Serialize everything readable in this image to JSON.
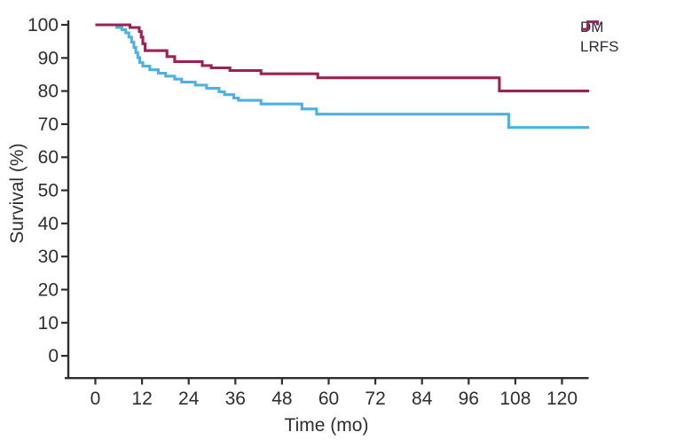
{
  "figure": {
    "background": "#ffffff",
    "axis_color": "#2e2e2e",
    "text_color": "#2e2e2e"
  },
  "chart_data": {
    "type": "line",
    "subtype": "kaplan-meier-step",
    "title": "",
    "xlabel": "Time (mo)",
    "ylabel": "Survival (%)",
    "xlim": [
      0,
      127
    ],
    "ylim": [
      0,
      100
    ],
    "x_ticks": [
      0,
      12,
      24,
      36,
      48,
      60,
      72,
      84,
      96,
      108,
      120
    ],
    "y_ticks": [
      0,
      10,
      20,
      30,
      40,
      50,
      60,
      70,
      80,
      90,
      100
    ],
    "grid": false,
    "legend_position": "top-right",
    "x_end": 127,
    "series": [
      {
        "name": "DM",
        "color": "#4fb0e2",
        "points": [
          [
            0,
            100
          ],
          [
            5.5,
            99.2
          ],
          [
            6.8,
            98.5
          ],
          [
            7.8,
            97.6
          ],
          [
            8.6,
            96.3
          ],
          [
            9.3,
            94.8
          ],
          [
            9.9,
            93.2
          ],
          [
            10.4,
            91.6
          ],
          [
            10.9,
            90.1
          ],
          [
            11.4,
            88.6
          ],
          [
            12.2,
            87.5
          ],
          [
            14,
            86.4
          ],
          [
            16.2,
            85.4
          ],
          [
            18.1,
            84.5
          ],
          [
            20.4,
            83.6
          ],
          [
            22.2,
            82.7
          ],
          [
            25.7,
            81.8
          ],
          [
            28.6,
            80.8
          ],
          [
            31.8,
            79.8
          ],
          [
            33.2,
            78.9
          ],
          [
            35.6,
            77.9
          ],
          [
            36.8,
            77.2
          ],
          [
            42.6,
            76.1
          ],
          [
            53.1,
            74.6
          ],
          [
            56.9,
            73
          ],
          [
            106.3,
            69
          ]
        ]
      },
      {
        "name": "LRFS",
        "color": "#9c2155",
        "points": [
          [
            0,
            100
          ],
          [
            8.9,
            99.2
          ],
          [
            11.3,
            98
          ],
          [
            11.8,
            96.3
          ],
          [
            12.2,
            94.3
          ],
          [
            12.8,
            92.2
          ],
          [
            18.4,
            90.4
          ],
          [
            20.4,
            88.9
          ],
          [
            27.5,
            87.7
          ],
          [
            29.8,
            87
          ],
          [
            34.6,
            86.2
          ],
          [
            42.6,
            85.2
          ],
          [
            57.2,
            84
          ],
          [
            103.9,
            80
          ]
        ]
      }
    ]
  }
}
